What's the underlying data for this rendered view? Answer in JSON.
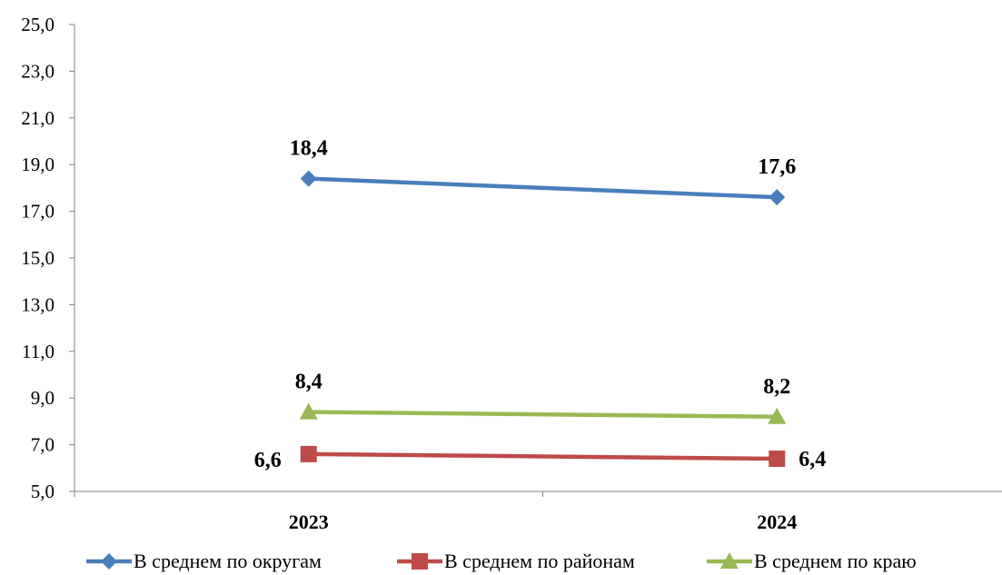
{
  "chart_data": {
    "type": "line",
    "title": "",
    "xlabel": "",
    "ylabel": "",
    "categories": [
      "2023",
      "2024"
    ],
    "ylim": [
      5.0,
      25.0
    ],
    "yticks": [
      "5,0",
      "7,0",
      "9,0",
      "11,0",
      "13,0",
      "15,0",
      "17,0",
      "19,0",
      "21,0",
      "23,0",
      "25,0"
    ],
    "grid": false,
    "legend_position": "bottom",
    "series": [
      {
        "name": "В среднем по округам",
        "values": [
          18.4,
          17.6
        ],
        "labels": [
          "18,4",
          "17,6"
        ],
        "color": "#4a7ebb",
        "marker": "diamond"
      },
      {
        "name": "В среднем по районам",
        "values": [
          6.6,
          6.4
        ],
        "labels": [
          "6,6",
          "6,4"
        ],
        "color": "#be4b48",
        "marker": "square"
      },
      {
        "name": "В среднем по краю",
        "values": [
          8.4,
          8.2
        ],
        "labels": [
          "8,4",
          "8,2"
        ],
        "color": "#98b954",
        "marker": "triangle"
      }
    ]
  }
}
